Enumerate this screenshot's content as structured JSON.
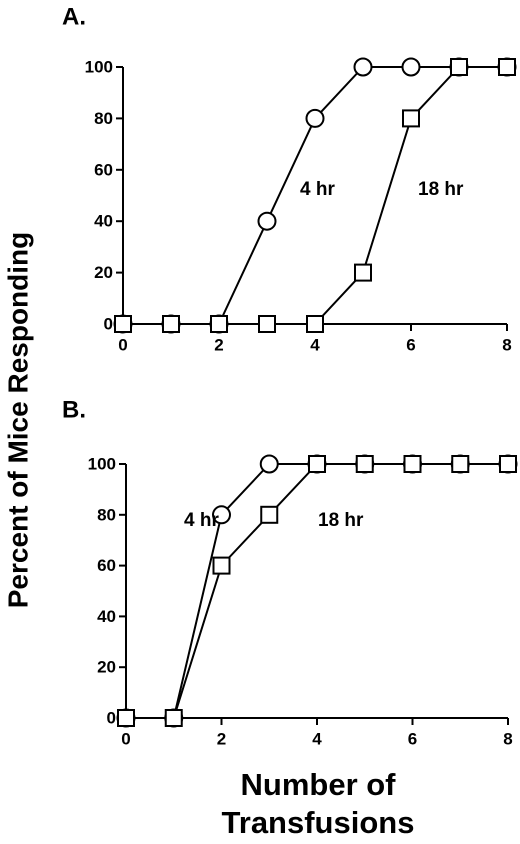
{
  "chart_data": [
    {
      "type": "line",
      "title": "A.",
      "ylabel": "Percent of Mice Responding",
      "x": [
        0,
        1,
        2,
        3,
        4,
        5,
        6,
        7,
        8
      ],
      "series": [
        {
          "name": "4 hr",
          "color": "#000000",
          "marker": "circle",
          "values": [
            0,
            0,
            0,
            40,
            80,
            100,
            100,
            100,
            100
          ]
        },
        {
          "name": "18 hr",
          "color": "#000000",
          "marker": "square",
          "values": [
            0,
            0,
            0,
            0,
            0,
            20,
            80,
            100,
            100
          ]
        }
      ],
      "xlim": [
        0,
        8
      ],
      "xticks": [
        0,
        2,
        4,
        6,
        8
      ],
      "ylim": [
        0,
        100
      ],
      "yticks": [
        0,
        20,
        40,
        60,
        80,
        100
      ]
    },
    {
      "type": "line",
      "title": "B.",
      "xlabel": "Number of Transfusions",
      "x": [
        0,
        1,
        2,
        3,
        4,
        5,
        6,
        7,
        8
      ],
      "series": [
        {
          "name": "4 hr",
          "color": "#000000",
          "marker": "circle",
          "values": [
            0,
            0,
            80,
            100,
            100,
            100,
            100,
            100,
            100
          ]
        },
        {
          "name": "18 hr",
          "color": "#000000",
          "marker": "square",
          "values": [
            0,
            0,
            60,
            80,
            100,
            100,
            100,
            100,
            100
          ]
        }
      ],
      "xlim": [
        0,
        8
      ],
      "xticks": [
        0,
        2,
        4,
        6,
        8
      ],
      "ylim": [
        0,
        100
      ],
      "yticks": [
        0,
        20,
        40,
        60,
        80,
        100
      ]
    }
  ]
}
